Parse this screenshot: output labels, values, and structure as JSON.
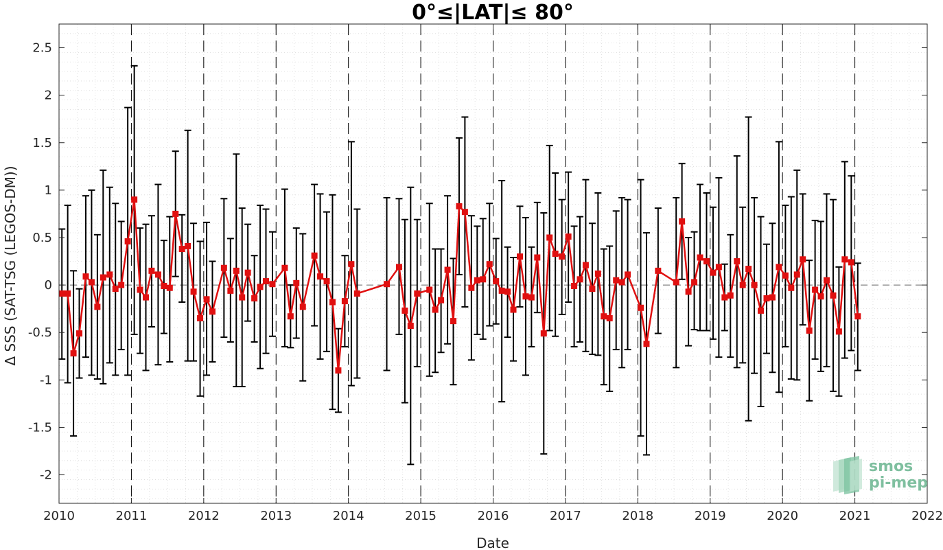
{
  "chart_data": {
    "type": "line",
    "title": "0°≤|LAT|≤ 80°",
    "xlabel": "Date",
    "ylabel": "Δ SSS (SAT-TSG (LEGOS-DM))",
    "xlim": [
      2010,
      2022
    ],
    "ylim": [
      -2.3,
      2.75
    ],
    "xticks": [
      "2010",
      "2011",
      "2012",
      "2013",
      "2014",
      "2015",
      "2016",
      "2017",
      "2018",
      "2019",
      "2020",
      "2021",
      "2022"
    ],
    "yticks": [
      "-2",
      "-1.5",
      "-1",
      "-0.5",
      "0",
      "0.5",
      "1",
      "1.5",
      "2",
      "2.5"
    ],
    "grid": "on",
    "year_markers": [
      2011,
      2012,
      2013,
      2014,
      2015,
      2016,
      2017,
      2018,
      2019,
      2020,
      2021
    ],
    "series": [
      {
        "color": "#e01010",
        "marker": "square",
        "error_bar_color": "#000000",
        "points": [
          [
            2010.04,
            -0.09,
            -0.78,
            0.59
          ],
          [
            2010.12,
            -0.09,
            -1.03,
            0.84
          ],
          [
            2010.2,
            -0.72,
            -1.59,
            0.15
          ],
          [
            2010.28,
            -0.51,
            -0.98,
            -0.04
          ],
          [
            2010.37,
            0.09,
            -0.76,
            0.94
          ],
          [
            2010.45,
            0.03,
            -0.95,
            1.0
          ],
          [
            2010.53,
            -0.23,
            -0.99,
            0.53
          ],
          [
            2010.61,
            0.08,
            -1.04,
            1.21
          ],
          [
            2010.7,
            0.11,
            -0.82,
            1.03
          ],
          [
            2010.78,
            -0.04,
            -0.95,
            0.86
          ],
          [
            2010.86,
            0.0,
            -0.68,
            0.67
          ],
          [
            2010.95,
            0.46,
            -0.95,
            1.87
          ],
          [
            2011.04,
            0.9,
            -0.52,
            2.31
          ],
          [
            2011.12,
            -0.05,
            -0.72,
            0.6
          ],
          [
            2011.2,
            -0.13,
            -0.9,
            0.64
          ],
          [
            2011.28,
            0.15,
            -0.44,
            0.73
          ],
          [
            2011.37,
            0.11,
            -0.84,
            1.06
          ],
          [
            2011.45,
            -0.01,
            -0.51,
            0.47
          ],
          [
            2011.53,
            -0.03,
            -0.81,
            0.72
          ],
          [
            2011.61,
            0.75,
            0.09,
            1.41
          ],
          [
            2011.7,
            0.38,
            -0.18,
            0.74
          ],
          [
            2011.78,
            0.41,
            -0.8,
            1.63
          ],
          [
            2011.86,
            -0.07,
            -0.8,
            0.65
          ],
          [
            2011.95,
            -0.35,
            -1.17,
            0.46
          ],
          [
            2012.04,
            -0.15,
            -0.95,
            0.66
          ],
          [
            2012.12,
            -0.28,
            -0.81,
            0.25
          ],
          [
            2012.28,
            0.18,
            -0.55,
            0.91
          ],
          [
            2012.37,
            -0.06,
            -0.6,
            0.49
          ],
          [
            2012.45,
            0.15,
            -1.07,
            1.38
          ],
          [
            2012.53,
            -0.13,
            -1.07,
            0.81
          ],
          [
            2012.61,
            0.13,
            -0.38,
            0.64
          ],
          [
            2012.7,
            -0.14,
            -0.6,
            0.31
          ],
          [
            2012.78,
            -0.02,
            -0.88,
            0.84
          ],
          [
            2012.86,
            0.04,
            -0.72,
            0.8
          ],
          [
            2012.95,
            0.01,
            -0.54,
            0.56
          ],
          [
            2013.12,
            0.18,
            -0.65,
            1.01
          ],
          [
            2013.2,
            -0.33,
            -0.66,
            0.0
          ],
          [
            2013.28,
            0.02,
            -0.56,
            0.6
          ],
          [
            2013.37,
            -0.23,
            -1.01,
            0.54
          ],
          [
            2013.53,
            0.31,
            -0.43,
            1.06
          ],
          [
            2013.61,
            0.09,
            -0.78,
            0.96
          ],
          [
            2013.7,
            0.04,
            -0.7,
            0.77
          ],
          [
            2013.78,
            -0.18,
            -1.31,
            0.95
          ],
          [
            2013.86,
            -0.9,
            -1.34,
            -0.46
          ],
          [
            2013.95,
            -0.17,
            -0.65,
            0.31
          ],
          [
            2014.04,
            0.22,
            -1.06,
            1.51
          ],
          [
            2014.12,
            -0.09,
            -0.98,
            0.8
          ],
          [
            2014.53,
            0.01,
            -0.9,
            0.92
          ],
          [
            2014.7,
            0.19,
            -0.52,
            0.91
          ],
          [
            2014.78,
            -0.27,
            -1.24,
            0.69
          ],
          [
            2014.86,
            -0.43,
            -1.89,
            1.03
          ],
          [
            2014.95,
            -0.09,
            -0.86,
            0.69
          ],
          [
            2015.12,
            -0.05,
            -0.96,
            0.86
          ],
          [
            2015.2,
            -0.26,
            -0.92,
            0.38
          ],
          [
            2015.28,
            -0.16,
            -0.71,
            0.38
          ],
          [
            2015.37,
            0.16,
            -0.62,
            0.94
          ],
          [
            2015.45,
            -0.38,
            -1.05,
            0.28
          ],
          [
            2015.53,
            0.83,
            0.11,
            1.55
          ],
          [
            2015.61,
            0.77,
            -0.23,
            1.77
          ],
          [
            2015.7,
            -0.03,
            -0.79,
            0.73
          ],
          [
            2015.78,
            0.05,
            -0.52,
            0.62
          ],
          [
            2015.86,
            0.06,
            -0.57,
            0.7
          ],
          [
            2015.95,
            0.22,
            -0.43,
            0.86
          ],
          [
            2016.04,
            0.04,
            -0.41,
            0.49
          ],
          [
            2016.12,
            -0.06,
            -1.23,
            1.1
          ],
          [
            2016.2,
            -0.07,
            -0.55,
            0.4
          ],
          [
            2016.28,
            -0.26,
            -0.8,
            0.29
          ],
          [
            2016.37,
            0.3,
            -0.23,
            0.83
          ],
          [
            2016.45,
            -0.12,
            -0.95,
            0.71
          ],
          [
            2016.53,
            -0.13,
            -0.65,
            0.4
          ],
          [
            2016.61,
            0.29,
            -0.29,
            0.87
          ],
          [
            2016.7,
            -0.51,
            -1.78,
            0.76
          ],
          [
            2016.78,
            0.5,
            -0.48,
            1.47
          ],
          [
            2016.86,
            0.33,
            -0.54,
            1.18
          ],
          [
            2016.95,
            0.3,
            -0.31,
            0.9
          ],
          [
            2017.04,
            0.51,
            -0.18,
            1.19
          ],
          [
            2017.12,
            -0.01,
            -0.65,
            0.62
          ],
          [
            2017.2,
            0.06,
            -0.6,
            0.72
          ],
          [
            2017.28,
            0.21,
            -0.7,
            1.11
          ],
          [
            2017.37,
            -0.04,
            -0.73,
            0.65
          ],
          [
            2017.45,
            0.12,
            -0.74,
            0.97
          ],
          [
            2017.53,
            -0.33,
            -1.05,
            0.38
          ],
          [
            2017.61,
            -0.35,
            -1.12,
            0.41
          ],
          [
            2017.7,
            0.05,
            -0.68,
            0.78
          ],
          [
            2017.78,
            0.03,
            -0.87,
            0.92
          ],
          [
            2017.86,
            0.11,
            -0.68,
            0.9
          ],
          [
            2018.04,
            -0.24,
            -1.59,
            1.11
          ],
          [
            2018.12,
            -0.62,
            -1.79,
            0.55
          ],
          [
            2018.28,
            0.15,
            -0.51,
            0.81
          ],
          [
            2018.53,
            0.03,
            -0.87,
            0.92
          ],
          [
            2018.61,
            0.67,
            0.06,
            1.28
          ],
          [
            2018.7,
            -0.07,
            -0.64,
            0.5
          ],
          [
            2018.78,
            0.03,
            -0.47,
            0.56
          ],
          [
            2018.86,
            0.29,
            -0.48,
            1.06
          ],
          [
            2018.95,
            0.25,
            -0.48,
            0.97
          ],
          [
            2019.04,
            0.13,
            -0.57,
            0.82
          ],
          [
            2019.12,
            0.19,
            -0.76,
            1.13
          ],
          [
            2019.2,
            -0.13,
            -0.48,
            0.22
          ],
          [
            2019.28,
            -0.11,
            -0.76,
            0.53
          ],
          [
            2019.37,
            0.25,
            -0.87,
            1.36
          ],
          [
            2019.45,
            0.0,
            -0.82,
            0.82
          ],
          [
            2019.53,
            0.17,
            -1.43,
            1.77
          ],
          [
            2019.61,
            0.0,
            -0.93,
            0.92
          ],
          [
            2019.7,
            -0.27,
            -1.28,
            0.72
          ],
          [
            2019.78,
            -0.14,
            -0.72,
            0.43
          ],
          [
            2019.86,
            -0.13,
            -0.92,
            0.65
          ],
          [
            2019.95,
            0.19,
            -1.13,
            1.51
          ],
          [
            2020.04,
            0.1,
            -0.65,
            0.84
          ],
          [
            2020.12,
            -0.03,
            -0.99,
            0.93
          ],
          [
            2020.2,
            0.11,
            -1.0,
            1.21
          ],
          [
            2020.28,
            0.27,
            -0.42,
            0.96
          ],
          [
            2020.37,
            -0.48,
            -1.22,
            0.26
          ],
          [
            2020.45,
            -0.05,
            -0.78,
            0.68
          ],
          [
            2020.53,
            -0.12,
            -0.91,
            0.67
          ],
          [
            2020.61,
            0.05,
            -0.86,
            0.96
          ],
          [
            2020.7,
            -0.11,
            -1.12,
            0.9
          ],
          [
            2020.78,
            -0.49,
            -1.17,
            0.19
          ],
          [
            2020.86,
            0.27,
            -0.77,
            1.3
          ],
          [
            2020.95,
            0.24,
            -0.69,
            1.15
          ],
          [
            2021.04,
            -0.33,
            -0.9,
            0.23
          ]
        ]
      }
    ],
    "logo": {
      "line1": "smos",
      "line2": "pi-mep"
    }
  }
}
